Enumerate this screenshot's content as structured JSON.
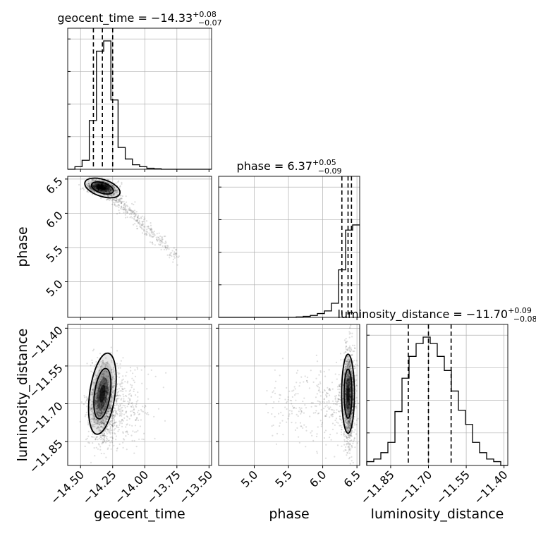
{
  "chart_data": {
    "type": "corner",
    "parameters": [
      "geocent_time",
      "phase",
      "luminosity_distance"
    ],
    "axis_labels": {
      "geocent_time": "geocent_time",
      "phase": "phase",
      "luminosity_distance": "luminosity_distance"
    },
    "ranges": {
      "geocent_time": [
        -14.6,
        -13.48
      ],
      "phase": [
        4.48,
        6.54
      ],
      "luminosity_distance": [
        -11.945,
        -11.385
      ]
    },
    "ticks": {
      "geocent_time": [
        -14.5,
        -14.25,
        -14.0,
        -13.75,
        -13.5
      ],
      "phase": [
        5.0,
        5.5,
        6.0,
        6.5
      ],
      "luminosity_distance": [
        -11.85,
        -11.7,
        -11.55,
        -11.4
      ]
    },
    "tick_labels": {
      "geocent_time": [
        "−14.50",
        "−14.25",
        "−14.00",
        "−13.75",
        "−13.50"
      ],
      "phase": [
        "5.0",
        "5.5",
        "6.0",
        "6.5"
      ],
      "luminosity_distance": [
        "−11.85",
        "−11.70",
        "−11.55",
        "−11.40"
      ]
    },
    "titles": {
      "geocent_time": {
        "label": "geocent_time",
        "value": "−14.33",
        "plus": "+0.08",
        "minus": "−0.07"
      },
      "phase": {
        "label": "phase",
        "value": "6.37",
        "plus": "+0.05",
        "minus": "−0.09"
      },
      "luminosity_distance": {
        "label": "luminosity_distance",
        "value": "−11.70",
        "plus": "+0.09",
        "minus": "−0.08"
      }
    },
    "quantiles": {
      "geocent_time": [
        -14.4,
        -14.33,
        -14.25
      ],
      "phase": [
        6.28,
        6.37,
        6.42
      ],
      "luminosity_distance": [
        -11.78,
        -11.7,
        -11.61
      ]
    },
    "histograms": {
      "geocent_time": {
        "edges": [
          -14.6,
          -14.544,
          -14.488,
          -14.432,
          -14.376,
          -14.32,
          -14.264,
          -14.208,
          -14.152,
          -14.096,
          -14.04,
          -13.984,
          -13.928,
          -13.872,
          -13.816,
          -13.76,
          -13.704,
          -13.648,
          -13.592,
          -13.536,
          -13.48
        ],
        "counts": [
          0.0,
          0.02,
          0.07,
          0.38,
          0.92,
          1.0,
          0.54,
          0.17,
          0.08,
          0.035,
          0.02,
          0.008,
          0.004,
          0.0,
          0.0,
          0.0,
          0.0,
          0.0,
          0.0,
          0.0
        ]
      },
      "phase": {
        "edges": [
          4.48,
          4.583,
          4.686,
          4.789,
          4.892,
          4.995,
          5.098,
          5.201,
          5.304,
          5.407,
          5.51,
          5.613,
          5.716,
          5.819,
          5.922,
          6.025,
          6.128,
          6.231,
          6.334,
          6.437,
          6.54
        ],
        "counts": [
          0.0,
          0.0,
          0.0,
          0.0,
          0.0,
          0.0,
          0.0,
          0.0,
          0.0,
          0.0,
          0.0,
          0.003,
          0.008,
          0.015,
          0.03,
          0.05,
          0.11,
          0.37,
          0.68,
          0.72
        ]
      },
      "luminosity_distance": {
        "edges": [
          -11.945,
          -11.917,
          -11.889,
          -11.861,
          -11.833,
          -11.805,
          -11.777,
          -11.749,
          -11.721,
          -11.693,
          -11.665,
          -11.637,
          -11.609,
          -11.581,
          -11.553,
          -11.525,
          -11.497,
          -11.469,
          -11.441,
          -11.413,
          -11.385
        ],
        "counts": [
          0.03,
          0.05,
          0.1,
          0.18,
          0.42,
          0.68,
          0.85,
          0.95,
          1.0,
          0.95,
          0.85,
          0.74,
          0.58,
          0.43,
          0.32,
          0.18,
          0.1,
          0.05,
          0.03,
          0.0
        ]
      }
    },
    "posterior_peak": {
      "geocent_time": -14.33,
      "phase": 6.37,
      "luminosity_distance": -11.66
    },
    "contour_levels": [
      0.39,
      0.86
    ],
    "grid": true,
    "colors": {
      "line": "#000000",
      "dashed": "#000000",
      "grid": "#b0b0b0",
      "points": "#000000"
    }
  }
}
